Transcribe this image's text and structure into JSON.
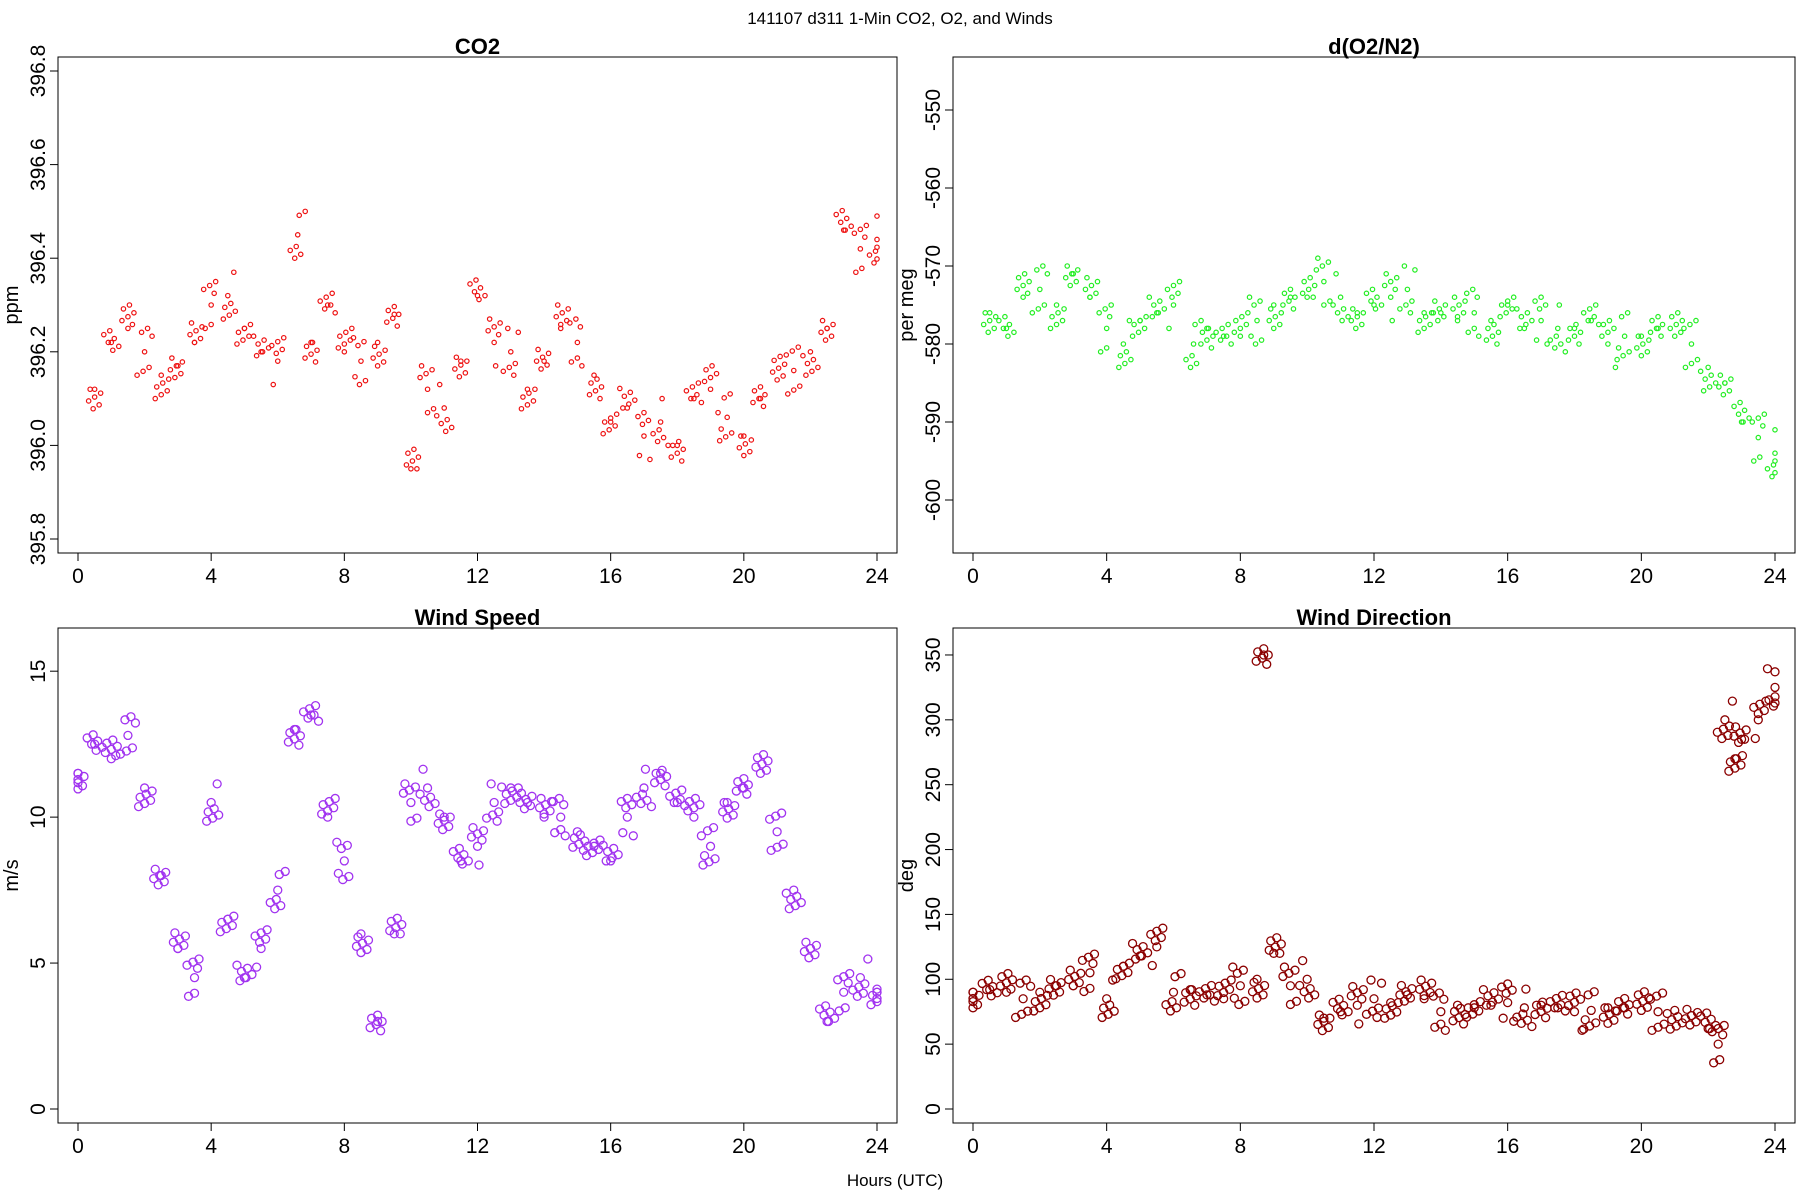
{
  "figure": {
    "suptitle": "141107   d311   1-Min CO2, O2, and Winds",
    "xlabel": "Hours (UTC)"
  },
  "chart_data": [
    {
      "id": "co2",
      "type": "scatter",
      "title": "CO2",
      "xlabel": "",
      "ylabel": "ppm",
      "xlim": [
        0,
        24
      ],
      "ylim": [
        395.8,
        396.8
      ],
      "xticks": [
        0,
        4,
        8,
        12,
        16,
        20,
        24
      ],
      "yticks": [
        395.8,
        396.0,
        396.2,
        396.4,
        396.6,
        396.8
      ],
      "ytick_labels": [
        "395.8",
        "396.0",
        "396.2",
        "396.4",
        "396.6",
        "396.8"
      ],
      "color": "#ee1111",
      "marker": "small-open-circle",
      "x": [
        0.5,
        1.0,
        1.5,
        2.0,
        2.5,
        3.0,
        3.5,
        4.0,
        4.5,
        5.0,
        5.5,
        6.0,
        6.6,
        7.0,
        7.5,
        8.0,
        8.5,
        9.0,
        9.5,
        10.0,
        10.5,
        11.0,
        11.5,
        12.0,
        12.5,
        13.0,
        13.5,
        14.0,
        14.5,
        15.0,
        15.5,
        16.0,
        16.5,
        17.0,
        17.5,
        18.0,
        18.5,
        19.0,
        19.5,
        20.0,
        20.5,
        21.0,
        21.5,
        22.0,
        22.5,
        23.0,
        23.5,
        24.0
      ],
      "y": [
        396.12,
        396.22,
        396.25,
        396.2,
        396.15,
        396.17,
        396.22,
        396.3,
        396.32,
        396.25,
        396.2,
        396.18,
        396.45,
        396.22,
        396.3,
        396.2,
        396.18,
        396.22,
        396.28,
        395.95,
        396.12,
        396.08,
        396.18,
        396.32,
        396.22,
        396.2,
        396.12,
        396.18,
        396.25,
        396.22,
        396.15,
        396.05,
        396.08,
        396.02,
        396.05,
        396.0,
        396.1,
        396.12,
        396.06,
        396.02,
        396.1,
        396.14,
        396.16,
        396.2,
        396.25,
        396.46,
        396.42,
        396.44
      ]
    },
    {
      "id": "o2",
      "type": "scatter",
      "title": "d(O2/N2)",
      "xlabel": "",
      "ylabel": "per meg",
      "xlim": [
        0,
        24
      ],
      "ylim": [
        -605,
        -545
      ],
      "xticks": [
        0,
        4,
        8,
        12,
        16,
        20,
        24
      ],
      "yticks": [
        -600,
        -590,
        -580,
        -570,
        -560,
        -550
      ],
      "ytick_labels": [
        "-600",
        "-590",
        "-580",
        "-570",
        "-560",
        "-550"
      ],
      "color": "#22ee22",
      "marker": "small-open-circle",
      "x": [
        0.5,
        1.0,
        1.5,
        2.0,
        2.5,
        3.0,
        3.5,
        4.0,
        4.5,
        5.0,
        5.5,
        6.0,
        6.6,
        7.0,
        7.5,
        8.0,
        8.5,
        9.0,
        9.5,
        10.0,
        10.5,
        11.0,
        11.5,
        12.0,
        12.5,
        13.0,
        13.5,
        14.0,
        14.5,
        15.0,
        15.5,
        16.0,
        16.5,
        17.0,
        17.5,
        18.0,
        18.5,
        19.0,
        19.5,
        20.0,
        20.5,
        21.0,
        21.5,
        22.0,
        22.5,
        23.0,
        23.5,
        24.0
      ],
      "y": [
        -576,
        -578,
        -574,
        -573,
        -575,
        -571,
        -574,
        -578,
        -580,
        -577,
        -576,
        -575,
        -580,
        -578,
        -579,
        -579,
        -577,
        -575,
        -574,
        -574,
        -572,
        -574,
        -576,
        -575,
        -574,
        -573,
        -576,
        -576,
        -577,
        -576,
        -577,
        -575,
        -578,
        -577,
        -578,
        -578,
        -577,
        -580,
        -579,
        -579,
        -578,
        -579,
        -580,
        -583,
        -585,
        -590,
        -592,
        -594
      ]
    },
    {
      "id": "wind-speed",
      "type": "scatter",
      "title": "Wind Speed",
      "xlabel": "",
      "ylabel": "m/s",
      "xlim": [
        0,
        24
      ],
      "ylim": [
        0,
        16
      ],
      "xticks": [
        0,
        4,
        8,
        12,
        16,
        20,
        24
      ],
      "yticks": [
        0,
        5,
        10,
        15
      ],
      "ytick_labels": [
        "0",
        "5",
        "10",
        "15"
      ],
      "color": "#a133f0",
      "marker": "open-circle",
      "x": [
        0.0,
        0.5,
        1.0,
        1.5,
        2.0,
        2.5,
        3.0,
        3.5,
        4.0,
        4.5,
        5.0,
        5.5,
        6.0,
        6.5,
        7.0,
        7.5,
        8.0,
        8.5,
        9.0,
        9.5,
        10.0,
        10.5,
        11.0,
        11.5,
        12.0,
        12.5,
        13.0,
        13.5,
        14.0,
        14.5,
        15.0,
        15.5,
        16.0,
        16.5,
        17.0,
        17.5,
        18.0,
        18.5,
        19.0,
        19.5,
        20.0,
        20.5,
        21.0,
        21.5,
        22.0,
        22.5,
        23.0,
        23.5,
        24.0
      ],
      "y": [
        11.5,
        12.5,
        12.0,
        12.8,
        11.0,
        8.0,
        5.5,
        4.5,
        10.5,
        6.5,
        4.5,
        5.5,
        7.5,
        13.0,
        13.5,
        10.0,
        8.5,
        6.0,
        3.0,
        6.0,
        10.5,
        11.0,
        10.0,
        8.5,
        9.0,
        10.5,
        11.0,
        10.5,
        10.0,
        10.0,
        9.5,
        9.0,
        8.5,
        10.0,
        11.0,
        11.5,
        10.5,
        10.0,
        9.0,
        10.5,
        11.0,
        11.5,
        9.5,
        7.5,
        5.5,
        3.0,
        4.0,
        4.5,
        4.0
      ]
    },
    {
      "id": "wind-direction",
      "type": "scatter",
      "title": "Wind Direction",
      "xlabel": "",
      "ylabel": "deg",
      "xlim": [
        0,
        24
      ],
      "ylim": [
        0,
        360
      ],
      "xticks": [
        0,
        4,
        8,
        12,
        16,
        20,
        24
      ],
      "yticks": [
        0,
        50,
        100,
        150,
        200,
        250,
        300,
        350
      ],
      "ytick_labels": [
        "0",
        "50",
        "100",
        "150",
        "200",
        "250",
        "300",
        "350"
      ],
      "color": "#8b0000",
      "marker": "open-circle",
      "x": [
        0.0,
        0.5,
        1.0,
        1.5,
        2.0,
        2.5,
        3.0,
        3.5,
        4.0,
        4.5,
        5.0,
        5.5,
        6.0,
        6.5,
        7.0,
        7.5,
        8.0,
        8.5,
        8.7,
        9.0,
        9.5,
        10.0,
        10.5,
        11.0,
        11.5,
        12.0,
        12.5,
        13.0,
        13.5,
        14.0,
        14.5,
        15.0,
        15.5,
        16.0,
        16.5,
        17.0,
        17.5,
        18.0,
        18.5,
        19.0,
        19.5,
        20.0,
        20.5,
        21.0,
        21.5,
        22.0,
        22.3,
        22.5,
        22.8,
        23.0,
        23.5,
        24.0
      ],
      "y": [
        90,
        92,
        90,
        85,
        90,
        95,
        95,
        105,
        85,
        110,
        118,
        125,
        90,
        92,
        88,
        85,
        95,
        100,
        350,
        120,
        95,
        100,
        70,
        75,
        80,
        85,
        82,
        88,
        85,
        75,
        80,
        78,
        80,
        82,
        78,
        80,
        78,
        75,
        76,
        78,
        78,
        76,
        75,
        76,
        72,
        62,
        50,
        300,
        270,
        285,
        300,
        325
      ]
    }
  ]
}
